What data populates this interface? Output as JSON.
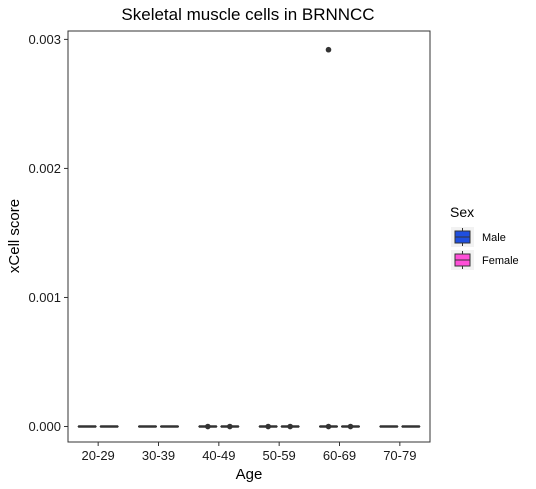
{
  "chart_data": {
    "type": "boxplot",
    "title": "Skeletal muscle cells in BRNNCC",
    "xlabel": "Age",
    "ylabel": "xCell score",
    "categories": [
      "20-29",
      "30-39",
      "40-49",
      "50-59",
      "60-69",
      "70-79"
    ],
    "ylim": [
      -0.00012,
      0.003065
    ],
    "yticks": [
      0.0,
      0.001,
      0.002,
      0.003
    ],
    "ytick_labels": [
      "0.000",
      "0.001",
      "0.002",
      "0.003"
    ],
    "grid": false,
    "legend": {
      "title": "Sex",
      "position": "right",
      "entries": [
        {
          "name": "Male",
          "color": "#1f4fe0"
        },
        {
          "name": "Female",
          "color": "#ff4fd8"
        }
      ]
    },
    "series": [
      {
        "name": "Male",
        "boxes": [
          {
            "category": "20-29",
            "min": 0,
            "q1": 0,
            "median": 0,
            "q3": 0,
            "max": 0,
            "outliers": []
          },
          {
            "category": "30-39",
            "min": 0,
            "q1": 0,
            "median": 0,
            "q3": 0,
            "max": 0,
            "outliers": []
          },
          {
            "category": "40-49",
            "min": 0,
            "q1": 0,
            "median": 0,
            "q3": 0,
            "max": 0,
            "outliers": [
              0
            ]
          },
          {
            "category": "50-59",
            "min": 0,
            "q1": 0,
            "median": 0,
            "q3": 0,
            "max": 0,
            "outliers": [
              0
            ]
          },
          {
            "category": "60-69",
            "min": 0,
            "q1": 0,
            "median": 0,
            "q3": 0,
            "max": 0,
            "outliers": [
              0,
              0.00292
            ]
          },
          {
            "category": "70-79",
            "min": 0,
            "q1": 0,
            "median": 0,
            "q3": 0,
            "max": 0,
            "outliers": []
          }
        ]
      },
      {
        "name": "Female",
        "boxes": [
          {
            "category": "20-29",
            "min": 0,
            "q1": 0,
            "median": 0,
            "q3": 0,
            "max": 0,
            "outliers": []
          },
          {
            "category": "30-39",
            "min": 0,
            "q1": 0,
            "median": 0,
            "q3": 0,
            "max": 0,
            "outliers": []
          },
          {
            "category": "40-49",
            "min": 0,
            "q1": 0,
            "median": 0,
            "q3": 0,
            "max": 0,
            "outliers": [
              0
            ]
          },
          {
            "category": "50-59",
            "min": 0,
            "q1": 0,
            "median": 0,
            "q3": 0,
            "max": 0,
            "outliers": [
              0
            ]
          },
          {
            "category": "60-69",
            "min": 0,
            "q1": 0,
            "median": 0,
            "q3": 0,
            "max": 0,
            "outliers": [
              0
            ]
          },
          {
            "category": "70-79",
            "min": 0,
            "q1": 0,
            "median": 0,
            "q3": 0,
            "max": 0,
            "outliers": []
          }
        ]
      }
    ]
  }
}
